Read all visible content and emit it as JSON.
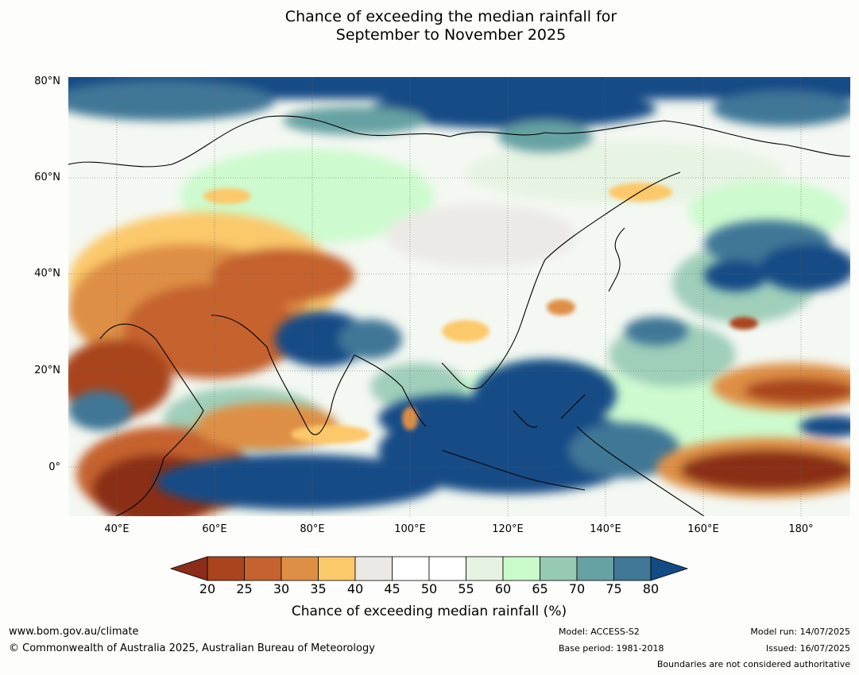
{
  "title": {
    "line1": "Chance of exceeding the median rainfall for",
    "line2": "September to November 2025"
  },
  "map": {
    "lat_labels": [
      "80°N",
      "60°N",
      "40°N",
      "20°N",
      "0°"
    ],
    "lon_labels": [
      "40°E",
      "60°E",
      "80°E",
      "100°E",
      "120°E",
      "140°E",
      "160°E",
      "180°"
    ],
    "lat_range": [
      -10,
      80
    ],
    "lon_range": [
      30,
      190
    ]
  },
  "colorbar": {
    "ticks": [
      "20",
      "25",
      "30",
      "35",
      "40",
      "45",
      "50",
      "55",
      "60",
      "65",
      "70",
      "75",
      "80"
    ],
    "below_color": "#8b2d18",
    "colors": [
      "#a9441f",
      "#c5622f",
      "#de8f45",
      "#fbc86a",
      "#ebe9e5",
      "#ffffff",
      "#ffffff",
      "#e6f3e2",
      "#c9fbcb",
      "#96cab3",
      "#66a1a3",
      "#417797"
    ],
    "above_color": "#134b86",
    "label": "Chance of exceeding median rainfall (%)"
  },
  "footer": {
    "url": "www.bom.gov.au/climate",
    "copyright": "© Commonwealth of Australia 2025, Australian Bureau of Meteorology",
    "model": "Model: ACCESS-S2",
    "base_period": "Base period: 1981-2018",
    "model_run": "Model run: 14/07/2025",
    "issued": "Issued: 16/07/2025",
    "disclaimer": "Boundaries are not considered authoritative"
  }
}
